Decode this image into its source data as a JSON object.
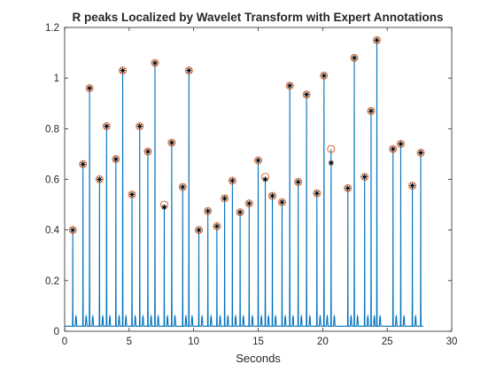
{
  "chart_data": {
    "type": "line",
    "title": "R peaks Localized by Wavelet Transform with Expert Annotations",
    "xlabel": "Seconds",
    "ylabel": "",
    "xlim": [
      0,
      30
    ],
    "ylim": [
      0,
      1.2
    ],
    "xticks": [
      0,
      5,
      10,
      15,
      20,
      25,
      30
    ],
    "yticks": [
      0,
      0.2,
      0.4,
      0.6,
      0.8,
      1,
      1.2
    ],
    "xtick_labels": [
      "0",
      "5",
      "10",
      "15",
      "20",
      "25",
      "30"
    ],
    "ytick_labels": [
      "0",
      "0.2",
      "0.4",
      "0.6",
      "0.8",
      "1",
      "1.2"
    ],
    "grid": false,
    "legend": "none",
    "signal_end": 27.8,
    "colors": {
      "signal": "#0072BD",
      "wavelet_marker": "#D95319",
      "annotation_marker": "#000000",
      "axis": "#262626"
    },
    "series": [
      {
        "marker": "circle",
        "x": [
          0.63,
          1.42,
          1.93,
          2.7,
          3.25,
          3.97,
          4.5,
          5.22,
          5.82,
          6.45,
          7.0,
          7.72,
          8.3,
          9.15,
          9.63,
          10.4,
          11.1,
          11.8,
          12.4,
          13.0,
          13.6,
          14.3,
          15.0,
          15.55,
          16.1,
          16.85,
          17.45,
          18.1,
          18.75,
          19.55,
          20.1,
          20.65,
          21.95,
          22.45,
          23.25,
          23.75,
          24.2,
          25.45,
          26.05,
          26.95,
          27.6
        ],
        "y": [
          0.4,
          0.66,
          0.96,
          0.6,
          0.81,
          0.68,
          1.03,
          0.54,
          0.81,
          0.71,
          1.06,
          0.5,
          0.745,
          0.57,
          1.03,
          0.4,
          0.475,
          0.415,
          0.525,
          0.595,
          0.47,
          0.505,
          0.675,
          0.61,
          0.535,
          0.51,
          0.97,
          0.59,
          0.935,
          0.545,
          1.01,
          0.72,
          0.565,
          1.08,
          0.61,
          0.87,
          1.15,
          0.72,
          0.74,
          0.575,
          0.705
        ]
      },
      {
        "marker": "asterisk",
        "x": [
          0.63,
          1.42,
          1.93,
          2.7,
          3.25,
          3.97,
          4.5,
          5.22,
          5.82,
          6.45,
          7.0,
          7.72,
          8.3,
          9.15,
          9.63,
          10.4,
          11.1,
          11.8,
          12.4,
          13.0,
          13.6,
          14.3,
          15.0,
          15.55,
          16.1,
          16.85,
          17.45,
          18.1,
          18.75,
          19.55,
          20.1,
          20.65,
          21.95,
          22.45,
          23.25,
          23.75,
          24.2,
          25.45,
          26.05,
          26.95,
          27.6
        ],
        "y": [
          0.4,
          0.66,
          0.96,
          0.6,
          0.81,
          0.68,
          1.03,
          0.54,
          0.81,
          0.71,
          1.06,
          0.49,
          0.745,
          0.57,
          1.03,
          0.4,
          0.475,
          0.415,
          0.525,
          0.595,
          0.47,
          0.505,
          0.675,
          0.6,
          0.535,
          0.51,
          0.97,
          0.59,
          0.935,
          0.545,
          1.01,
          0.665,
          0.565,
          1.08,
          0.61,
          0.87,
          1.15,
          0.72,
          0.74,
          0.575,
          0.705
        ]
      }
    ]
  }
}
